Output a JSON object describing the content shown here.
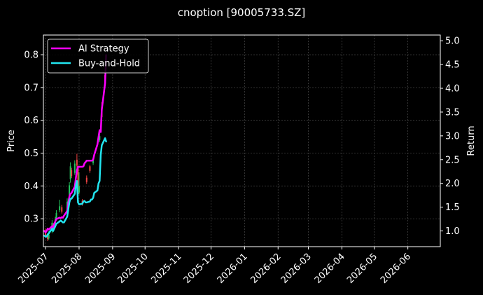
{
  "chart_data": {
    "type": "line",
    "title": "cnoption [90005733.SZ]",
    "xlabel": "",
    "ylabel_left": "Price",
    "ylabel_right": "Return",
    "grid": true,
    "legend_position": "top-left",
    "background": "#000000",
    "x_ticks": [
      "2025-07",
      "2025-08",
      "2025-09",
      "2025-10",
      "2025-11",
      "2025-12",
      "2026-01",
      "2026-02",
      "2026-03",
      "2026-04",
      "2026-05",
      "2026-06"
    ],
    "y_left_ticks": [
      0.3,
      0.4,
      0.5,
      0.6,
      0.7,
      0.8
    ],
    "y_right_ticks": [
      1.0,
      1.5,
      2.0,
      2.5,
      3.0,
      3.5,
      4.0,
      4.5,
      5.0
    ],
    "x_range": [
      "2025-06-29",
      "2026-07-01"
    ],
    "ylim_left": [
      0.215,
      0.86
    ],
    "ylim_right": [
      0.67,
      5.12
    ],
    "candles": {
      "up_color": "#22c55e",
      "down_color": "#ef4444",
      "data": [
        {
          "date": "2025-07-01",
          "open": 0.262,
          "close": 0.248,
          "high": 0.27,
          "low": 0.242
        },
        {
          "date": "2025-07-03",
          "open": 0.246,
          "close": 0.238,
          "high": 0.252,
          "low": 0.232
        },
        {
          "date": "2025-07-04",
          "open": 0.24,
          "close": 0.252,
          "high": 0.262,
          "low": 0.236
        },
        {
          "date": "2025-07-07",
          "open": 0.262,
          "close": 0.288,
          "high": 0.296,
          "low": 0.256
        },
        {
          "date": "2025-07-08",
          "open": 0.28,
          "close": 0.268,
          "high": 0.286,
          "low": 0.262
        },
        {
          "date": "2025-07-10",
          "open": 0.275,
          "close": 0.298,
          "high": 0.306,
          "low": 0.272
        },
        {
          "date": "2025-07-11",
          "open": 0.3,
          "close": 0.318,
          "high": 0.326,
          "low": 0.294
        },
        {
          "date": "2025-07-14",
          "open": 0.326,
          "close": 0.338,
          "high": 0.358,
          "low": 0.32
        },
        {
          "date": "2025-07-16",
          "open": 0.335,
          "close": 0.322,
          "high": 0.342,
          "low": 0.316
        },
        {
          "date": "2025-07-21",
          "open": 0.33,
          "close": 0.352,
          "high": 0.362,
          "low": 0.326
        },
        {
          "date": "2025-07-23",
          "open": 0.37,
          "close": 0.402,
          "high": 0.412,
          "low": 0.362
        },
        {
          "date": "2025-07-24",
          "open": 0.42,
          "close": 0.46,
          "high": 0.472,
          "low": 0.41
        },
        {
          "date": "2025-07-25",
          "open": 0.448,
          "close": 0.43,
          "high": 0.455,
          "low": 0.424
        },
        {
          "date": "2025-07-28",
          "open": 0.44,
          "close": 0.468,
          "high": 0.478,
          "low": 0.434
        },
        {
          "date": "2025-07-30",
          "open": 0.48,
          "close": 0.462,
          "high": 0.498,
          "low": 0.455
        },
        {
          "date": "2025-07-31",
          "open": 0.455,
          "close": 0.375,
          "high": 0.462,
          "low": 0.362
        },
        {
          "date": "2025-08-01",
          "open": 0.38,
          "close": 0.4,
          "high": 0.442,
          "low": 0.374
        },
        {
          "date": "2025-08-04",
          "open": 0.355,
          "close": 0.345,
          "high": 0.36,
          "low": 0.34
        },
        {
          "date": "2025-08-08",
          "open": 0.425,
          "close": 0.412,
          "high": 0.432,
          "low": 0.406
        },
        {
          "date": "2025-08-11",
          "open": 0.46,
          "close": 0.446,
          "high": 0.464,
          "low": 0.44
        },
        {
          "date": "2025-08-14",
          "open": 0.47,
          "close": 0.478,
          "high": 0.486,
          "low": 0.464
        },
        {
          "date": "2025-08-20",
          "open": 0.54,
          "close": 0.552,
          "high": 0.56,
          "low": 0.534
        },
        {
          "date": "2025-08-22",
          "open": 0.64,
          "close": 0.61,
          "high": 0.655,
          "low": 0.6
        },
        {
          "date": "2025-08-25",
          "open": 0.738,
          "close": 0.716,
          "high": 0.746,
          "low": 0.71
        }
      ]
    },
    "series": [
      {
        "name": "AI Strategy",
        "color": "#ff00ff",
        "axis": "right",
        "x": [
          "2025-06-30",
          "2025-07-01",
          "2025-07-02",
          "2025-07-03",
          "2025-07-04",
          "2025-07-07",
          "2025-07-08",
          "2025-07-09",
          "2025-07-10",
          "2025-07-11",
          "2025-07-14",
          "2025-07-15",
          "2025-07-16",
          "2025-07-17",
          "2025-07-18",
          "2025-07-21",
          "2025-07-22",
          "2025-07-23",
          "2025-07-24",
          "2025-07-25",
          "2025-07-28",
          "2025-07-29",
          "2025-07-30",
          "2025-07-31",
          "2025-08-01",
          "2025-08-04",
          "2025-08-05",
          "2025-08-06",
          "2025-08-07",
          "2025-08-08",
          "2025-08-11",
          "2025-08-12",
          "2025-08-13",
          "2025-08-14",
          "2025-08-15",
          "2025-08-18",
          "2025-08-19",
          "2025-08-20",
          "2025-08-21",
          "2025-08-22",
          "2025-08-25",
          "2025-08-26"
        ],
        "values": [
          1.0,
          0.97,
          1.0,
          1.05,
          1.03,
          1.1,
          1.07,
          1.15,
          1.2,
          1.25,
          1.28,
          1.27,
          1.29,
          1.28,
          1.32,
          1.42,
          1.58,
          1.72,
          1.78,
          1.8,
          1.93,
          2.1,
          2.28,
          2.35,
          2.35,
          2.35,
          2.36,
          2.42,
          2.45,
          2.48,
          2.48,
          2.48,
          2.48,
          2.5,
          2.6,
          2.82,
          2.98,
          3.12,
          3.08,
          3.55,
          4.1,
          4.7
        ]
      },
      {
        "name": "Buy-and-Hold",
        "color": "#22e5f0",
        "axis": "right",
        "x": [
          "2025-06-30",
          "2025-07-01",
          "2025-07-02",
          "2025-07-03",
          "2025-07-04",
          "2025-07-07",
          "2025-07-08",
          "2025-07-09",
          "2025-07-10",
          "2025-07-11",
          "2025-07-14",
          "2025-07-15",
          "2025-07-16",
          "2025-07-17",
          "2025-07-18",
          "2025-07-21",
          "2025-07-22",
          "2025-07-23",
          "2025-07-24",
          "2025-07-25",
          "2025-07-28",
          "2025-07-29",
          "2025-07-30",
          "2025-07-31",
          "2025-08-01",
          "2025-08-04",
          "2025-08-05",
          "2025-08-06",
          "2025-08-07",
          "2025-08-08",
          "2025-08-11",
          "2025-08-12",
          "2025-08-13",
          "2025-08-14",
          "2025-08-15",
          "2025-08-18",
          "2025-08-19",
          "2025-08-20",
          "2025-08-21",
          "2025-08-22",
          "2025-08-25",
          "2025-08-26"
        ],
        "values": [
          0.9,
          0.88,
          0.88,
          0.93,
          0.95,
          1.05,
          1.0,
          1.05,
          1.1,
          1.15,
          1.2,
          1.22,
          1.2,
          1.18,
          1.18,
          1.3,
          1.45,
          1.6,
          1.68,
          1.68,
          1.78,
          1.95,
          2.05,
          1.6,
          1.56,
          1.57,
          1.62,
          1.63,
          1.6,
          1.6,
          1.62,
          1.66,
          1.66,
          1.7,
          1.8,
          1.85,
          2.0,
          2.05,
          2.6,
          2.8,
          2.95,
          2.88
        ]
      }
    ]
  }
}
